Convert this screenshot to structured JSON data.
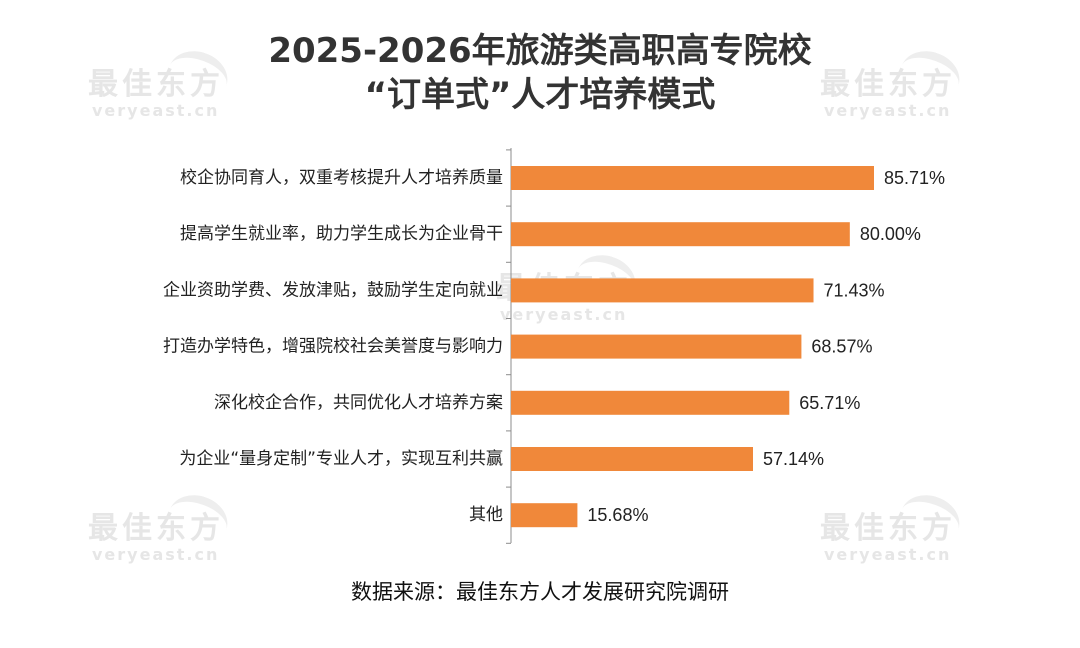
{
  "title_line1": "2025-2026年旅游类高职高专院校",
  "title_line2": "“订单式”人才培养模式",
  "watermark": {
    "cn": "最佳东方",
    "en": "veryeast.cn"
  },
  "source": "数据来源：最佳东方人才发展研究院调研",
  "chart_data": {
    "type": "bar",
    "orientation": "horizontal",
    "categories": [
      "校企协同育人，双重考核提升人才培养质量",
      "提高学生就业率，助力学生成长为企业骨干",
      "企业资助学费、发放津贴，鼓励学生定向就业",
      "打造办学特色，增强院校社会美誉度与影响力",
      "深化校企合作，共同优化人才培养方案",
      "为企业“量身定制”专业人才，实现互利共赢",
      "其他"
    ],
    "values": [
      85.71,
      80.0,
      71.43,
      68.57,
      65.71,
      57.14,
      15.68
    ],
    "labels": [
      "85.71%",
      "80.00%",
      "71.43%",
      "68.57%",
      "65.71%",
      "57.14%",
      "15.68%"
    ],
    "xlim": [
      0,
      100
    ],
    "bar_color": "#F0883A",
    "grid": false,
    "legend": "none"
  }
}
